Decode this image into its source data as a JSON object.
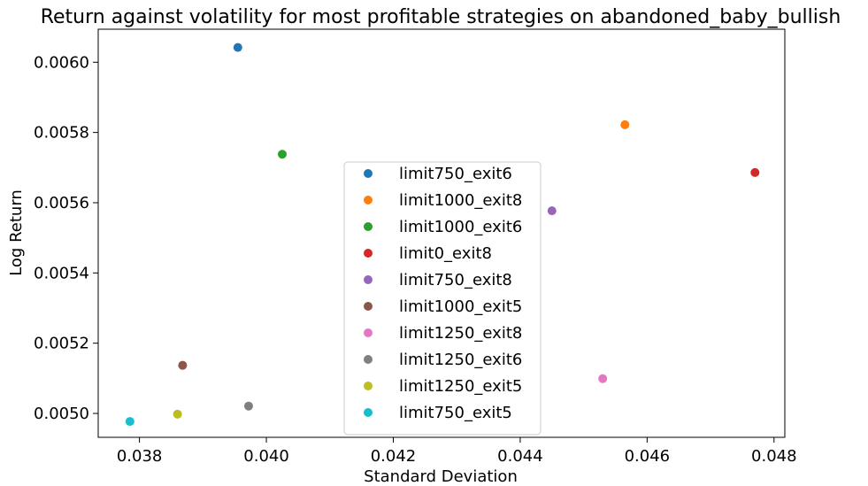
{
  "chart_data": {
    "type": "scatter",
    "title": "Return against volatility for most profitable strategies on abandoned_baby_bullish",
    "xlabel": "Standard Deviation",
    "ylabel": "Log Return",
    "xlim": [
      0.03735,
      0.04817
    ],
    "ylim": [
      0.004932,
      0.006094
    ],
    "xticks": [
      0.038,
      0.04,
      0.042,
      0.044,
      0.046,
      0.048
    ],
    "xtick_labels": [
      "0.038",
      "0.040",
      "0.042",
      "0.044",
      "0.046",
      "0.048"
    ],
    "yticks": [
      0.005,
      0.0052,
      0.0054,
      0.0056,
      0.0058,
      0.006
    ],
    "ytick_labels": [
      "0.0050",
      "0.0052",
      "0.0054",
      "0.0056",
      "0.0058",
      "0.0060"
    ],
    "grid": false,
    "legend_position": "center",
    "series": [
      {
        "name": "limit750_exit6",
        "color": "#1f77b4",
        "x": 0.03955,
        "y": 0.006042
      },
      {
        "name": "limit1000_exit8",
        "color": "#ff7f0e",
        "x": 0.04565,
        "y": 0.005822
      },
      {
        "name": "limit1000_exit6",
        "color": "#2ca02c",
        "x": 0.04025,
        "y": 0.005738
      },
      {
        "name": "limit0_exit8",
        "color": "#d62728",
        "x": 0.0477,
        "y": 0.005686
      },
      {
        "name": "limit750_exit8",
        "color": "#9467bd",
        "x": 0.0445,
        "y": 0.005577
      },
      {
        "name": "limit1000_exit5",
        "color": "#8c564b",
        "x": 0.03868,
        "y": 0.005137
      },
      {
        "name": "limit1250_exit8",
        "color": "#e377c2",
        "x": 0.0453,
        "y": 0.005099
      },
      {
        "name": "limit1250_exit6",
        "color": "#7f7f7f",
        "x": 0.03972,
        "y": 0.005021
      },
      {
        "name": "limit1250_exit5",
        "color": "#bcbd22",
        "x": 0.0386,
        "y": 0.004998
      },
      {
        "name": "limit750_exit5",
        "color": "#17becf",
        "x": 0.03785,
        "y": 0.004977
      }
    ]
  }
}
